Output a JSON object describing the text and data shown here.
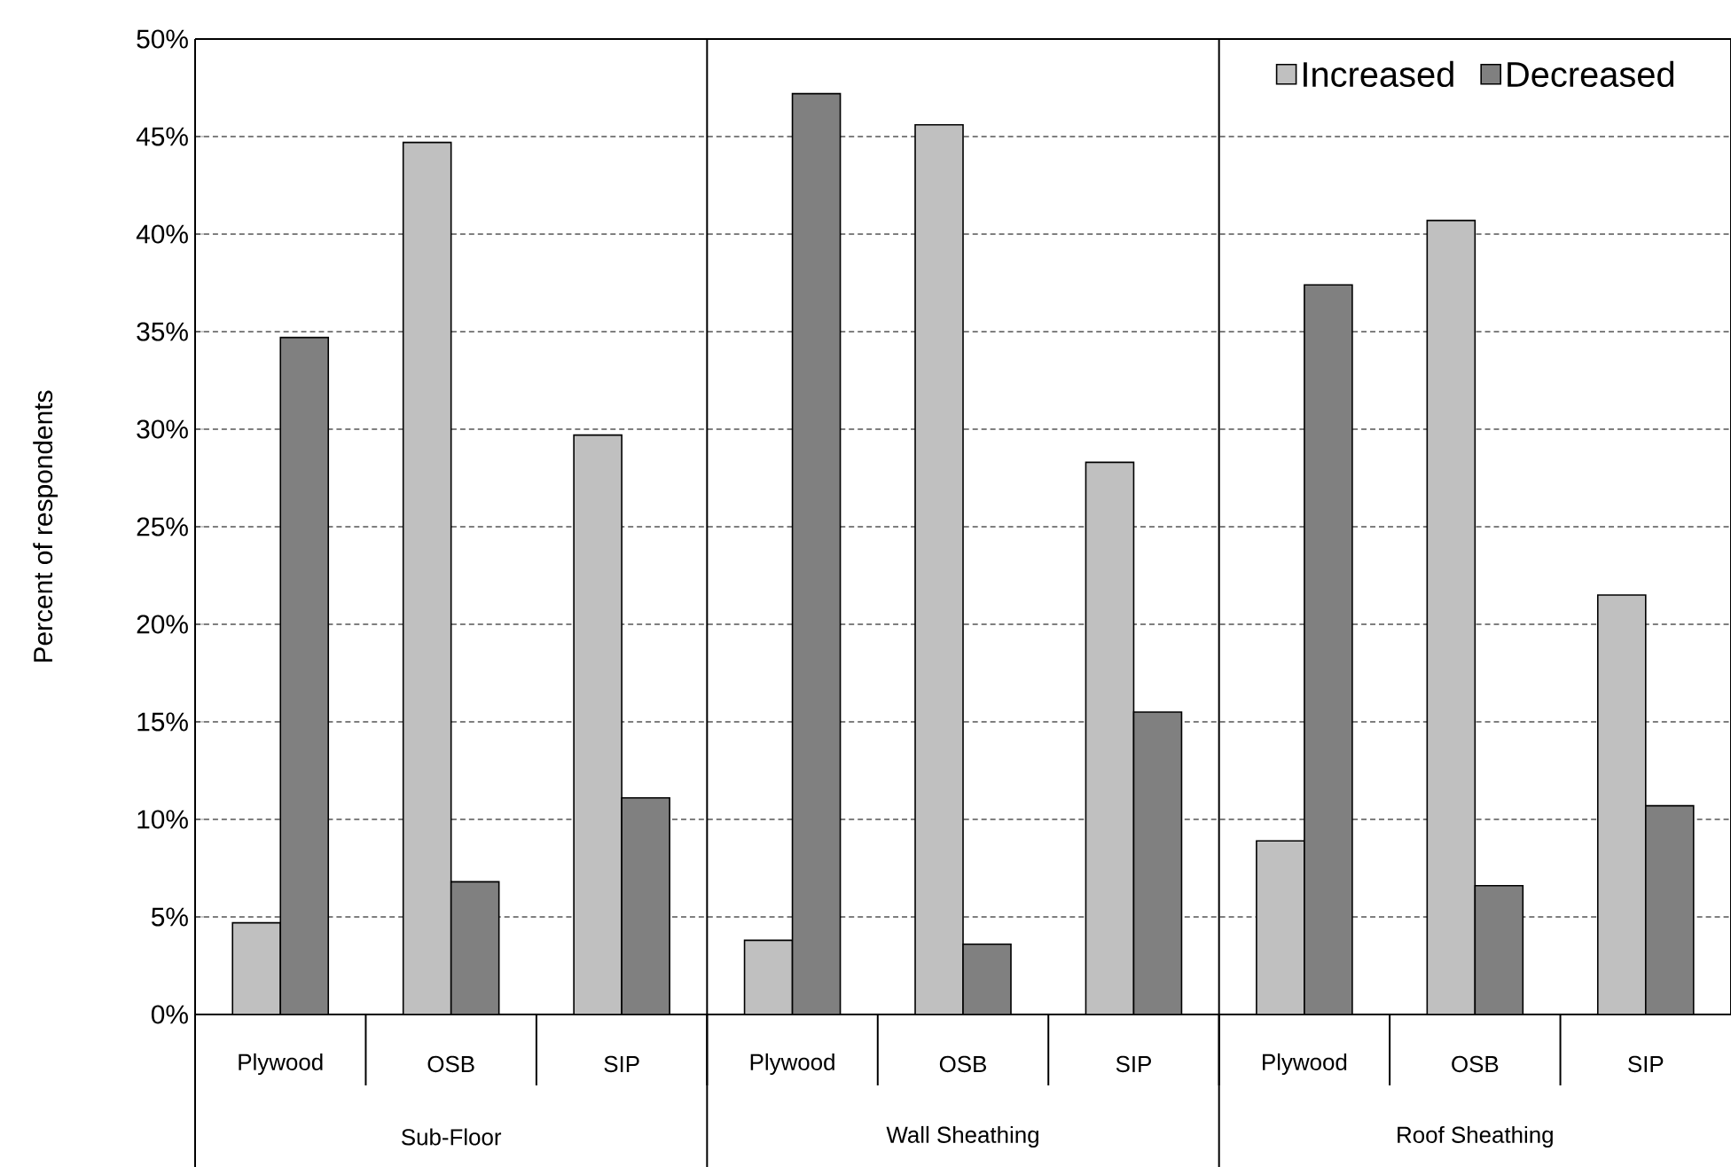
{
  "chart_data": {
    "type": "bar",
    "ylabel": "Percent of respondents",
    "categories": [
      "Plywood",
      "OSB",
      "SIP",
      "Plywood",
      "OSB",
      "SIP",
      "Plywood",
      "OSB",
      "SIP"
    ],
    "annotations": [
      "Sub-Floor",
      "Wall Sheathing",
      "Roof Sheathing"
    ],
    "series": [
      {
        "name": "Increased",
        "color": "#c0c0c0",
        "values": [
          4.7,
          44.7,
          29.7,
          3.8,
          45.6,
          28.3,
          8.9,
          40.7,
          21.5
        ]
      },
      {
        "name": "Decreased",
        "color": "#808080",
        "values": [
          34.7,
          6.8,
          11.1,
          47.2,
          3.6,
          15.5,
          37.4,
          6.6,
          10.7
        ]
      }
    ],
    "ylim": [
      0,
      50
    ],
    "yticks": [
      {
        "value": 0,
        "label": "0%"
      },
      {
        "value": 5,
        "label": "5%"
      },
      {
        "value": 10,
        "label": "10%"
      },
      {
        "value": 15,
        "label": "15%"
      },
      {
        "value": 20,
        "label": "20%"
      },
      {
        "value": 25,
        "label": "25%"
      },
      {
        "value": 30,
        "label": "30%"
      },
      {
        "value": 35,
        "label": "35%"
      },
      {
        "value": 40,
        "label": "40%"
      },
      {
        "value": 45,
        "label": "45%"
      },
      {
        "value": 50,
        "label": "50%"
      }
    ],
    "grid": "y",
    "legend": "top right"
  }
}
